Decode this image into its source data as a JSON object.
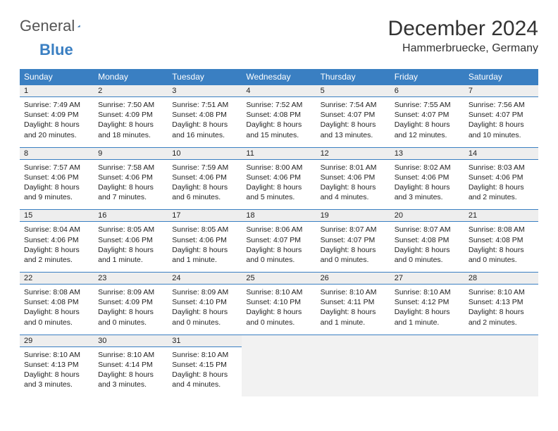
{
  "brand": {
    "part1": "General",
    "part2": "Blue"
  },
  "title": "December 2024",
  "location": "Hammerbruecke, Germany",
  "colors": {
    "accent": "#3a7fc2",
    "dowBg": "#3a7fc2",
    "dowText": "#ffffff",
    "dayBg": "#eeeeee",
    "text": "#222222",
    "pageBg": "#ffffff",
    "blankBg": "#f2f2f2"
  },
  "daysOfWeek": [
    "Sunday",
    "Monday",
    "Tuesday",
    "Wednesday",
    "Thursday",
    "Friday",
    "Saturday"
  ],
  "weeks": [
    [
      {
        "day": "1",
        "sunrise": "Sunrise: 7:49 AM",
        "sunset": "Sunset: 4:09 PM",
        "dl1": "Daylight: 8 hours",
        "dl2": "and 20 minutes."
      },
      {
        "day": "2",
        "sunrise": "Sunrise: 7:50 AM",
        "sunset": "Sunset: 4:09 PM",
        "dl1": "Daylight: 8 hours",
        "dl2": "and 18 minutes."
      },
      {
        "day": "3",
        "sunrise": "Sunrise: 7:51 AM",
        "sunset": "Sunset: 4:08 PM",
        "dl1": "Daylight: 8 hours",
        "dl2": "and 16 minutes."
      },
      {
        "day": "4",
        "sunrise": "Sunrise: 7:52 AM",
        "sunset": "Sunset: 4:08 PM",
        "dl1": "Daylight: 8 hours",
        "dl2": "and 15 minutes."
      },
      {
        "day": "5",
        "sunrise": "Sunrise: 7:54 AM",
        "sunset": "Sunset: 4:07 PM",
        "dl1": "Daylight: 8 hours",
        "dl2": "and 13 minutes."
      },
      {
        "day": "6",
        "sunrise": "Sunrise: 7:55 AM",
        "sunset": "Sunset: 4:07 PM",
        "dl1": "Daylight: 8 hours",
        "dl2": "and 12 minutes."
      },
      {
        "day": "7",
        "sunrise": "Sunrise: 7:56 AM",
        "sunset": "Sunset: 4:07 PM",
        "dl1": "Daylight: 8 hours",
        "dl2": "and 10 minutes."
      }
    ],
    [
      {
        "day": "8",
        "sunrise": "Sunrise: 7:57 AM",
        "sunset": "Sunset: 4:06 PM",
        "dl1": "Daylight: 8 hours",
        "dl2": "and 9 minutes."
      },
      {
        "day": "9",
        "sunrise": "Sunrise: 7:58 AM",
        "sunset": "Sunset: 4:06 PM",
        "dl1": "Daylight: 8 hours",
        "dl2": "and 7 minutes."
      },
      {
        "day": "10",
        "sunrise": "Sunrise: 7:59 AM",
        "sunset": "Sunset: 4:06 PM",
        "dl1": "Daylight: 8 hours",
        "dl2": "and 6 minutes."
      },
      {
        "day": "11",
        "sunrise": "Sunrise: 8:00 AM",
        "sunset": "Sunset: 4:06 PM",
        "dl1": "Daylight: 8 hours",
        "dl2": "and 5 minutes."
      },
      {
        "day": "12",
        "sunrise": "Sunrise: 8:01 AM",
        "sunset": "Sunset: 4:06 PM",
        "dl1": "Daylight: 8 hours",
        "dl2": "and 4 minutes."
      },
      {
        "day": "13",
        "sunrise": "Sunrise: 8:02 AM",
        "sunset": "Sunset: 4:06 PM",
        "dl1": "Daylight: 8 hours",
        "dl2": "and 3 minutes."
      },
      {
        "day": "14",
        "sunrise": "Sunrise: 8:03 AM",
        "sunset": "Sunset: 4:06 PM",
        "dl1": "Daylight: 8 hours",
        "dl2": "and 2 minutes."
      }
    ],
    [
      {
        "day": "15",
        "sunrise": "Sunrise: 8:04 AM",
        "sunset": "Sunset: 4:06 PM",
        "dl1": "Daylight: 8 hours",
        "dl2": "and 2 minutes."
      },
      {
        "day": "16",
        "sunrise": "Sunrise: 8:05 AM",
        "sunset": "Sunset: 4:06 PM",
        "dl1": "Daylight: 8 hours",
        "dl2": "and 1 minute."
      },
      {
        "day": "17",
        "sunrise": "Sunrise: 8:05 AM",
        "sunset": "Sunset: 4:06 PM",
        "dl1": "Daylight: 8 hours",
        "dl2": "and 1 minute."
      },
      {
        "day": "18",
        "sunrise": "Sunrise: 8:06 AM",
        "sunset": "Sunset: 4:07 PM",
        "dl1": "Daylight: 8 hours",
        "dl2": "and 0 minutes."
      },
      {
        "day": "19",
        "sunrise": "Sunrise: 8:07 AM",
        "sunset": "Sunset: 4:07 PM",
        "dl1": "Daylight: 8 hours",
        "dl2": "and 0 minutes."
      },
      {
        "day": "20",
        "sunrise": "Sunrise: 8:07 AM",
        "sunset": "Sunset: 4:08 PM",
        "dl1": "Daylight: 8 hours",
        "dl2": "and 0 minutes."
      },
      {
        "day": "21",
        "sunrise": "Sunrise: 8:08 AM",
        "sunset": "Sunset: 4:08 PM",
        "dl1": "Daylight: 8 hours",
        "dl2": "and 0 minutes."
      }
    ],
    [
      {
        "day": "22",
        "sunrise": "Sunrise: 8:08 AM",
        "sunset": "Sunset: 4:08 PM",
        "dl1": "Daylight: 8 hours",
        "dl2": "and 0 minutes."
      },
      {
        "day": "23",
        "sunrise": "Sunrise: 8:09 AM",
        "sunset": "Sunset: 4:09 PM",
        "dl1": "Daylight: 8 hours",
        "dl2": "and 0 minutes."
      },
      {
        "day": "24",
        "sunrise": "Sunrise: 8:09 AM",
        "sunset": "Sunset: 4:10 PM",
        "dl1": "Daylight: 8 hours",
        "dl2": "and 0 minutes."
      },
      {
        "day": "25",
        "sunrise": "Sunrise: 8:10 AM",
        "sunset": "Sunset: 4:10 PM",
        "dl1": "Daylight: 8 hours",
        "dl2": "and 0 minutes."
      },
      {
        "day": "26",
        "sunrise": "Sunrise: 8:10 AM",
        "sunset": "Sunset: 4:11 PM",
        "dl1": "Daylight: 8 hours",
        "dl2": "and 1 minute."
      },
      {
        "day": "27",
        "sunrise": "Sunrise: 8:10 AM",
        "sunset": "Sunset: 4:12 PM",
        "dl1": "Daylight: 8 hours",
        "dl2": "and 1 minute."
      },
      {
        "day": "28",
        "sunrise": "Sunrise: 8:10 AM",
        "sunset": "Sunset: 4:13 PM",
        "dl1": "Daylight: 8 hours",
        "dl2": "and 2 minutes."
      }
    ],
    [
      {
        "day": "29",
        "sunrise": "Sunrise: 8:10 AM",
        "sunset": "Sunset: 4:13 PM",
        "dl1": "Daylight: 8 hours",
        "dl2": "and 3 minutes."
      },
      {
        "day": "30",
        "sunrise": "Sunrise: 8:10 AM",
        "sunset": "Sunset: 4:14 PM",
        "dl1": "Daylight: 8 hours",
        "dl2": "and 3 minutes."
      },
      {
        "day": "31",
        "sunrise": "Sunrise: 8:10 AM",
        "sunset": "Sunset: 4:15 PM",
        "dl1": "Daylight: 8 hours",
        "dl2": "and 4 minutes."
      },
      null,
      null,
      null,
      null
    ]
  ]
}
